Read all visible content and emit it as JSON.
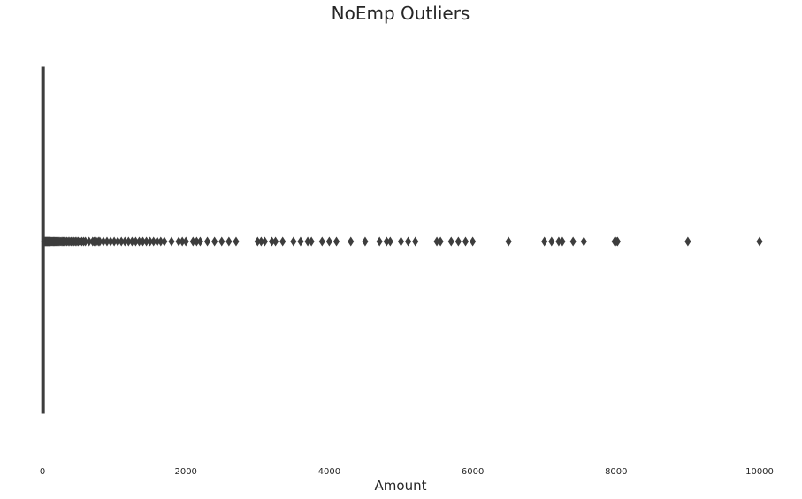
{
  "chart_data": {
    "type": "boxplot",
    "orientation": "horizontal",
    "title": "NoEmp Outliers",
    "xlabel": "Amount",
    "ylabel": "",
    "xlim": [
      0,
      10000
    ],
    "xticks": [
      0,
      2000,
      4000,
      6000,
      8000,
      10000
    ],
    "xtick_labels": [
      "0",
      "2000",
      "4000",
      "6000",
      "8000",
      "10000"
    ],
    "grid": false,
    "box": {
      "min": 0,
      "q1": 2,
      "median": 4,
      "q3": 10,
      "whisker_high": 22
    },
    "outliers": [
      25,
      30,
      35,
      40,
      45,
      50,
      55,
      60,
      65,
      70,
      75,
      80,
      85,
      90,
      95,
      100,
      110,
      120,
      130,
      140,
      150,
      160,
      170,
      180,
      190,
      200,
      215,
      230,
      245,
      260,
      275,
      290,
      300,
      320,
      340,
      360,
      380,
      400,
      420,
      440,
      460,
      480,
      500,
      525,
      550,
      575,
      600,
      650,
      700,
      720,
      750,
      780,
      800,
      850,
      900,
      950,
      1000,
      1050,
      1100,
      1150,
      1200,
      1250,
      1300,
      1350,
      1400,
      1450,
      1500,
      1550,
      1600,
      1650,
      1700,
      1800,
      1900,
      1950,
      2000,
      2100,
      2150,
      2200,
      2300,
      2400,
      2500,
      2600,
      2700,
      3000,
      3050,
      3100,
      3200,
      3250,
      3350,
      3500,
      3600,
      3700,
      3750,
      3900,
      4000,
      4100,
      4300,
      4500,
      4700,
      4800,
      4850,
      5000,
      5100,
      5200,
      5500,
      5550,
      5700,
      5800,
      5900,
      6000,
      6500,
      7000,
      7100,
      7200,
      7250,
      7400,
      7550,
      7980,
      8000,
      8020,
      9000,
      10000
    ],
    "colors": {
      "box": "#3d3d3d",
      "outlier": "#3d3d3d",
      "text": "#262626"
    }
  }
}
